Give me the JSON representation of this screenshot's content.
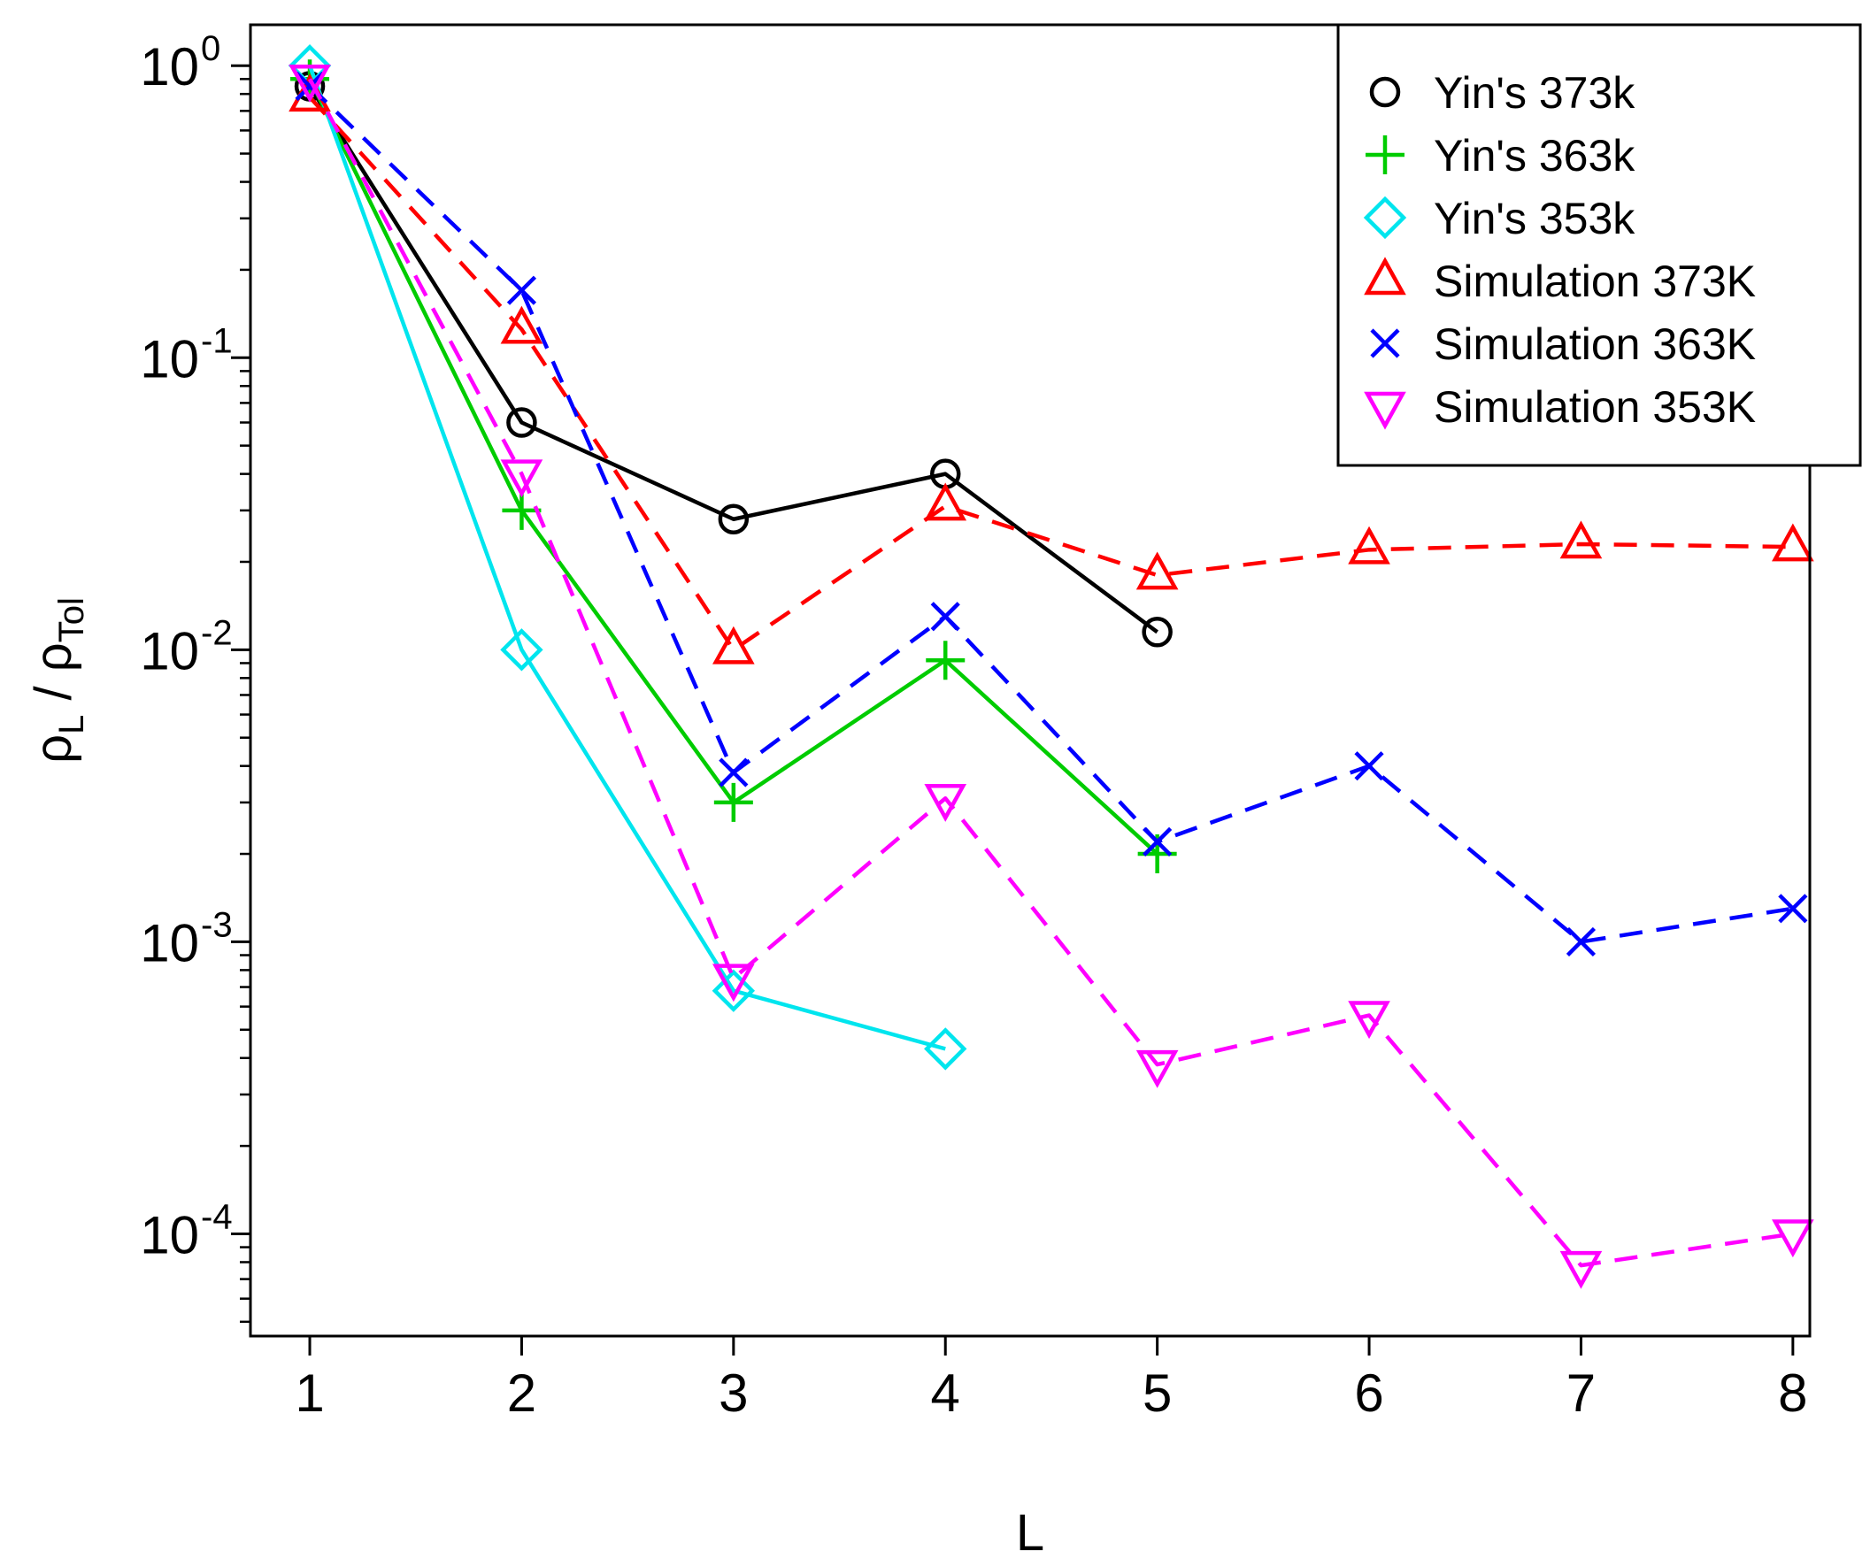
{
  "chart_data": {
    "type": "line",
    "xlabel": "L",
    "ylabel": {
      "base_left": "ρ",
      "sub_left": "L",
      "sep": " / ",
      "base_right": "ρ",
      "sub_right": "Tol"
    },
    "y_scale": "log10",
    "xlim": [
      0.72,
      8.08
    ],
    "ylim_log10": [
      -4.35,
      0.14
    ],
    "x_ticks": [
      1,
      2,
      3,
      4,
      5,
      6,
      7,
      8
    ],
    "y_ticks": [
      {
        "base": "10",
        "exp": "0",
        "value": 1
      },
      {
        "base": "10",
        "exp": "-1",
        "value": 0.1
      },
      {
        "base": "10",
        "exp": "-2",
        "value": 0.01
      },
      {
        "base": "10",
        "exp": "-3",
        "value": 0.001
      },
      {
        "base": "10",
        "exp": "-4",
        "value": 0.0001
      }
    ],
    "legend_position": "top-right",
    "series": [
      {
        "name": "Yin's 373k",
        "color": "#000000",
        "marker": "circle",
        "dash": false,
        "x": [
          1,
          2,
          3,
          4,
          5
        ],
        "values": [
          0.85,
          0.06,
          0.028,
          0.04,
          0.0115
        ]
      },
      {
        "name": "Yin's 363k",
        "color": "#00cc00",
        "marker": "plus",
        "dash": false,
        "x": [
          1,
          2,
          3,
          4,
          5
        ],
        "values": [
          0.9,
          0.03,
          0.003,
          0.0092,
          0.002
        ]
      },
      {
        "name": "Yin's 353k",
        "color": "#00e5ee",
        "marker": "diamond",
        "dash": false,
        "x": [
          1,
          2,
          3,
          4
        ],
        "values": [
          1.0,
          0.01,
          0.00068,
          0.00043
        ]
      },
      {
        "name": "Simulation 373K",
        "color": "#ff0000",
        "marker": "triangle-up",
        "dash": true,
        "x": [
          1,
          2,
          3,
          4,
          5,
          6,
          7,
          8
        ],
        "values": [
          0.78,
          0.125,
          0.01,
          0.031,
          0.018,
          0.022,
          0.023,
          0.0225
        ]
      },
      {
        "name": "Simulation 363K",
        "color": "#0000ff",
        "marker": "cross",
        "dash": true,
        "x": [
          1,
          2,
          3,
          4,
          5,
          6,
          7,
          8
        ],
        "values": [
          0.85,
          0.17,
          0.0038,
          0.013,
          0.0022,
          0.004,
          0.001,
          0.0013
        ]
      },
      {
        "name": "Simulation 353K",
        "color": "#ff00ff",
        "marker": "triangle-down",
        "dash": true,
        "x": [
          1,
          2,
          3,
          4,
          5,
          6,
          7,
          8
        ],
        "values": [
          0.9,
          0.04,
          0.00075,
          0.0031,
          0.00038,
          0.00056,
          7.8e-05,
          0.0001
        ]
      }
    ]
  }
}
